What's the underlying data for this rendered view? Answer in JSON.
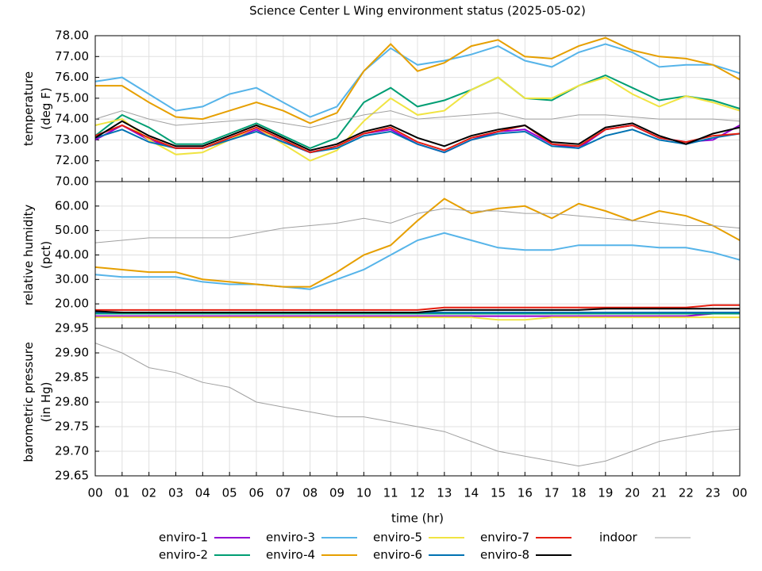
{
  "chart_data": [
    {
      "type": "line",
      "title": "Science Center L Wing environment status (2025-05-02)",
      "ylabel": [
        "temperature",
        "(deg F)"
      ],
      "x": [
        0,
        1,
        2,
        3,
        4,
        5,
        6,
        7,
        8,
        9,
        10,
        11,
        12,
        13,
        14,
        15,
        16,
        17,
        18,
        19,
        20,
        21,
        22,
        23,
        24
      ],
      "ylim": [
        71,
        78
      ],
      "yticks": [
        {
          "value": 72,
          "label": "72.00"
        },
        {
          "value": 73,
          "label": "73.00"
        },
        {
          "value": 74,
          "label": "74.00"
        },
        {
          "value": 75,
          "label": "75.00"
        },
        {
          "value": 76,
          "label": "76.00"
        },
        {
          "value": 77,
          "label": "77.00"
        },
        {
          "value": 78,
          "label": "78.00"
        }
      ],
      "grid": true,
      "series": [
        {
          "name": "enviro-1",
          "color": "#9400d3",
          "values": [
            73.0,
            73.7,
            73.0,
            72.6,
            72.6,
            73.0,
            73.5,
            72.9,
            72.4,
            72.7,
            73.3,
            73.5,
            72.8,
            72.4,
            73.0,
            73.4,
            73.5,
            72.8,
            72.6,
            73.5,
            73.7,
            73.1,
            72.9,
            73.0,
            73.7
          ]
        },
        {
          "name": "enviro-2",
          "color": "#009e73",
          "values": [
            73.2,
            74.2,
            73.6,
            72.8,
            72.8,
            73.3,
            73.8,
            73.2,
            72.6,
            73.1,
            74.8,
            75.5,
            74.6,
            74.9,
            75.4,
            76.0,
            75.0,
            74.9,
            75.6,
            76.1,
            75.5,
            74.9,
            75.1,
            74.9,
            74.5
          ]
        },
        {
          "name": "enviro-3",
          "color": "#56b4e9",
          "values": [
            75.8,
            76.0,
            75.2,
            74.4,
            74.6,
            75.2,
            75.5,
            74.8,
            74.1,
            74.6,
            76.3,
            77.4,
            76.6,
            76.8,
            77.1,
            77.5,
            76.8,
            76.5,
            77.2,
            77.6,
            77.2,
            76.5,
            76.6,
            76.6,
            76.2
          ]
        },
        {
          "name": "enviro-4",
          "color": "#e69f00",
          "values": [
            75.6,
            75.6,
            74.8,
            74.1,
            74.0,
            74.4,
            74.8,
            74.4,
            73.8,
            74.3,
            76.3,
            77.6,
            76.3,
            76.7,
            77.5,
            77.8,
            77.0,
            76.9,
            77.5,
            77.9,
            77.3,
            77.0,
            76.9,
            76.6,
            75.9
          ]
        },
        {
          "name": "enviro-5",
          "color": "#f0e442",
          "values": [
            73.7,
            74.0,
            73.0,
            72.3,
            72.4,
            73.0,
            73.6,
            72.8,
            72.0,
            72.5,
            73.9,
            75.0,
            74.2,
            74.4,
            75.4,
            76.0,
            75.0,
            75.0,
            75.6,
            76.0,
            75.2,
            74.6,
            75.1,
            74.8,
            74.4
          ]
        },
        {
          "name": "enviro-6",
          "color": "#0072b2",
          "values": [
            73.1,
            73.5,
            72.9,
            72.6,
            72.6,
            73.0,
            73.4,
            72.9,
            72.4,
            72.6,
            73.2,
            73.4,
            72.8,
            72.4,
            73.0,
            73.3,
            73.4,
            72.7,
            72.6,
            73.2,
            73.5,
            73.0,
            72.8,
            73.1,
            73.3
          ]
        },
        {
          "name": "enviro-7",
          "color": "#e51e10",
          "values": [
            73.2,
            73.7,
            73.1,
            72.6,
            72.6,
            73.1,
            73.6,
            73.0,
            72.4,
            72.7,
            73.3,
            73.6,
            72.9,
            72.5,
            73.1,
            73.4,
            73.7,
            72.8,
            72.7,
            73.5,
            73.7,
            73.1,
            72.9,
            73.2,
            73.3
          ]
        },
        {
          "name": "enviro-8",
          "color": "#000000",
          "values": [
            73.1,
            73.9,
            73.2,
            72.7,
            72.7,
            73.2,
            73.7,
            73.1,
            72.5,
            72.8,
            73.4,
            73.7,
            73.1,
            72.7,
            73.2,
            73.5,
            73.7,
            72.9,
            72.8,
            73.6,
            73.8,
            73.2,
            72.8,
            73.3,
            73.6
          ]
        },
        {
          "name": "indoor",
          "color": "#a0a0a0",
          "values": [
            74.0,
            74.4,
            74.0,
            73.7,
            73.8,
            73.9,
            74.0,
            73.8,
            73.6,
            73.9,
            74.2,
            74.4,
            74.0,
            74.1,
            74.2,
            74.3,
            74.0,
            74.0,
            74.2,
            74.2,
            74.1,
            74.0,
            74.0,
            74.0,
            73.9
          ]
        }
      ]
    },
    {
      "type": "line",
      "ylabel": [
        "relative humidity",
        "(pct)"
      ],
      "x": [
        0,
        1,
        2,
        3,
        4,
        5,
        6,
        7,
        8,
        9,
        10,
        11,
        12,
        13,
        14,
        15,
        16,
        17,
        18,
        19,
        20,
        21,
        22,
        23,
        24
      ],
      "ylim": [
        10,
        70
      ],
      "yticks": [
        {
          "value": 20,
          "label": "20.00"
        },
        {
          "value": 30,
          "label": "30.00"
        },
        {
          "value": 40,
          "label": "40.00"
        },
        {
          "value": 50,
          "label": "50.00"
        },
        {
          "value": 60,
          "label": "60.00"
        },
        {
          "value": 70,
          "label": "70.00"
        }
      ],
      "grid": true,
      "series": [
        {
          "name": "enviro-1",
          "color": "#9400d3",
          "values": [
            15,
            15,
            15,
            15,
            15,
            15,
            15,
            15,
            15,
            15,
            15,
            15,
            15,
            15,
            15,
            15,
            15,
            15,
            15,
            15,
            15,
            15,
            15,
            16,
            16
          ]
        },
        {
          "name": "enviro-2",
          "color": "#009e73",
          "values": [
            16,
            16,
            16,
            16,
            16,
            16,
            16,
            16,
            16,
            16,
            16,
            16,
            16,
            16,
            16,
            16,
            16,
            16,
            16,
            16,
            16,
            16,
            16,
            16,
            16
          ]
        },
        {
          "name": "enviro-3",
          "color": "#56b4e9",
          "values": [
            32,
            31,
            31,
            31,
            29,
            28,
            28,
            27,
            26,
            30,
            34,
            40,
            46,
            49,
            46,
            43,
            42,
            42,
            44,
            44,
            44,
            43,
            43,
            41,
            38
          ]
        },
        {
          "name": "enviro-4",
          "color": "#e69f00",
          "values": [
            35,
            34,
            33,
            33,
            30,
            29,
            28,
            27,
            27,
            33,
            40,
            44,
            54,
            63,
            57,
            59,
            60,
            55,
            61,
            58,
            54,
            58,
            56,
            52,
            46
          ]
        },
        {
          "name": "enviro-5",
          "color": "#f0e442",
          "values": [
            14.5,
            14.5,
            14.5,
            14.5,
            14.5,
            14.5,
            14.5,
            14.5,
            14.5,
            14.5,
            14.5,
            14.5,
            14.5,
            14.5,
            14.5,
            13.5,
            13.5,
            14.5,
            14.5,
            14.5,
            14.5,
            14.5,
            14.5,
            14.5,
            14.5
          ]
        },
        {
          "name": "enviro-6",
          "color": "#0072b2",
          "values": [
            16.5,
            16.5,
            16.5,
            16.5,
            16.5,
            16.5,
            16.5,
            16.5,
            16.5,
            16.5,
            16.5,
            16.5,
            16.5,
            16.5,
            16.5,
            16.5,
            16.5,
            16.5,
            16.5,
            16.5,
            16.5,
            16.5,
            16.5,
            16.5,
            16.5
          ]
        },
        {
          "name": "enviro-7",
          "color": "#e51e10",
          "values": [
            17.5,
            17.5,
            17.5,
            17.5,
            17.5,
            17.5,
            17.5,
            17.5,
            17.5,
            17.5,
            17.5,
            17.5,
            17.5,
            18.5,
            18.5,
            18.5,
            18.5,
            18.5,
            18.5,
            18.5,
            18.5,
            18.5,
            18.5,
            19.5,
            19.5
          ]
        },
        {
          "name": "enviro-8",
          "color": "#000000",
          "values": [
            17,
            16.5,
            16.5,
            16.5,
            16.5,
            16.5,
            16.5,
            16.5,
            16.5,
            16.5,
            16.5,
            16.5,
            16.5,
            17.5,
            17.5,
            17.5,
            17.5,
            17.5,
            17.5,
            18,
            18,
            18,
            18,
            18,
            18
          ]
        },
        {
          "name": "indoor",
          "color": "#a0a0a0",
          "values": [
            45,
            46,
            47,
            47,
            47,
            47,
            49,
            51,
            52,
            53,
            55,
            53,
            57,
            59,
            58,
            58,
            57,
            57,
            56,
            55,
            54,
            53,
            52,
            52,
            51
          ]
        }
      ]
    },
    {
      "type": "line",
      "ylabel": [
        "barometric pressure",
        "(in Hg)"
      ],
      "xlabel": "time (hr)",
      "x": [
        0,
        1,
        2,
        3,
        4,
        5,
        6,
        7,
        8,
        9,
        10,
        11,
        12,
        13,
        14,
        15,
        16,
        17,
        18,
        19,
        20,
        21,
        22,
        23,
        24
      ],
      "xlim": [
        0,
        24
      ],
      "xticks": [
        {
          "value": 0,
          "label": "00"
        },
        {
          "value": 1,
          "label": "01"
        },
        {
          "value": 2,
          "label": "02"
        },
        {
          "value": 3,
          "label": "03"
        },
        {
          "value": 4,
          "label": "04"
        },
        {
          "value": 5,
          "label": "05"
        },
        {
          "value": 6,
          "label": "06"
        },
        {
          "value": 7,
          "label": "07"
        },
        {
          "value": 8,
          "label": "08"
        },
        {
          "value": 9,
          "label": "09"
        },
        10,
        11,
        12,
        13,
        14,
        15,
        16,
        17,
        18,
        19,
        20,
        21,
        22,
        23,
        {
          "value": 24,
          "label": "00"
        }
      ],
      "ylim": [
        29.65,
        29.95
      ],
      "yticks": [
        {
          "value": 29.65,
          "label": "29.65"
        },
        {
          "value": 29.7,
          "label": "29.70"
        },
        {
          "value": 29.75,
          "label": "29.75"
        },
        {
          "value": 29.8,
          "label": "29.80"
        },
        {
          "value": 29.85,
          "label": "29.85"
        },
        {
          "value": 29.9,
          "label": "29.90"
        },
        {
          "value": 29.95,
          "label": "29.95"
        }
      ],
      "grid": true,
      "series": [
        {
          "name": "indoor",
          "color": "#a0a0a0",
          "values": [
            29.92,
            29.9,
            29.87,
            29.86,
            29.84,
            29.83,
            29.8,
            29.79,
            29.78,
            29.77,
            29.77,
            29.76,
            29.75,
            29.74,
            29.72,
            29.7,
            29.69,
            29.68,
            29.67,
            29.68,
            29.7,
            29.72,
            29.73,
            29.74,
            29.745
          ]
        }
      ]
    }
  ]
}
